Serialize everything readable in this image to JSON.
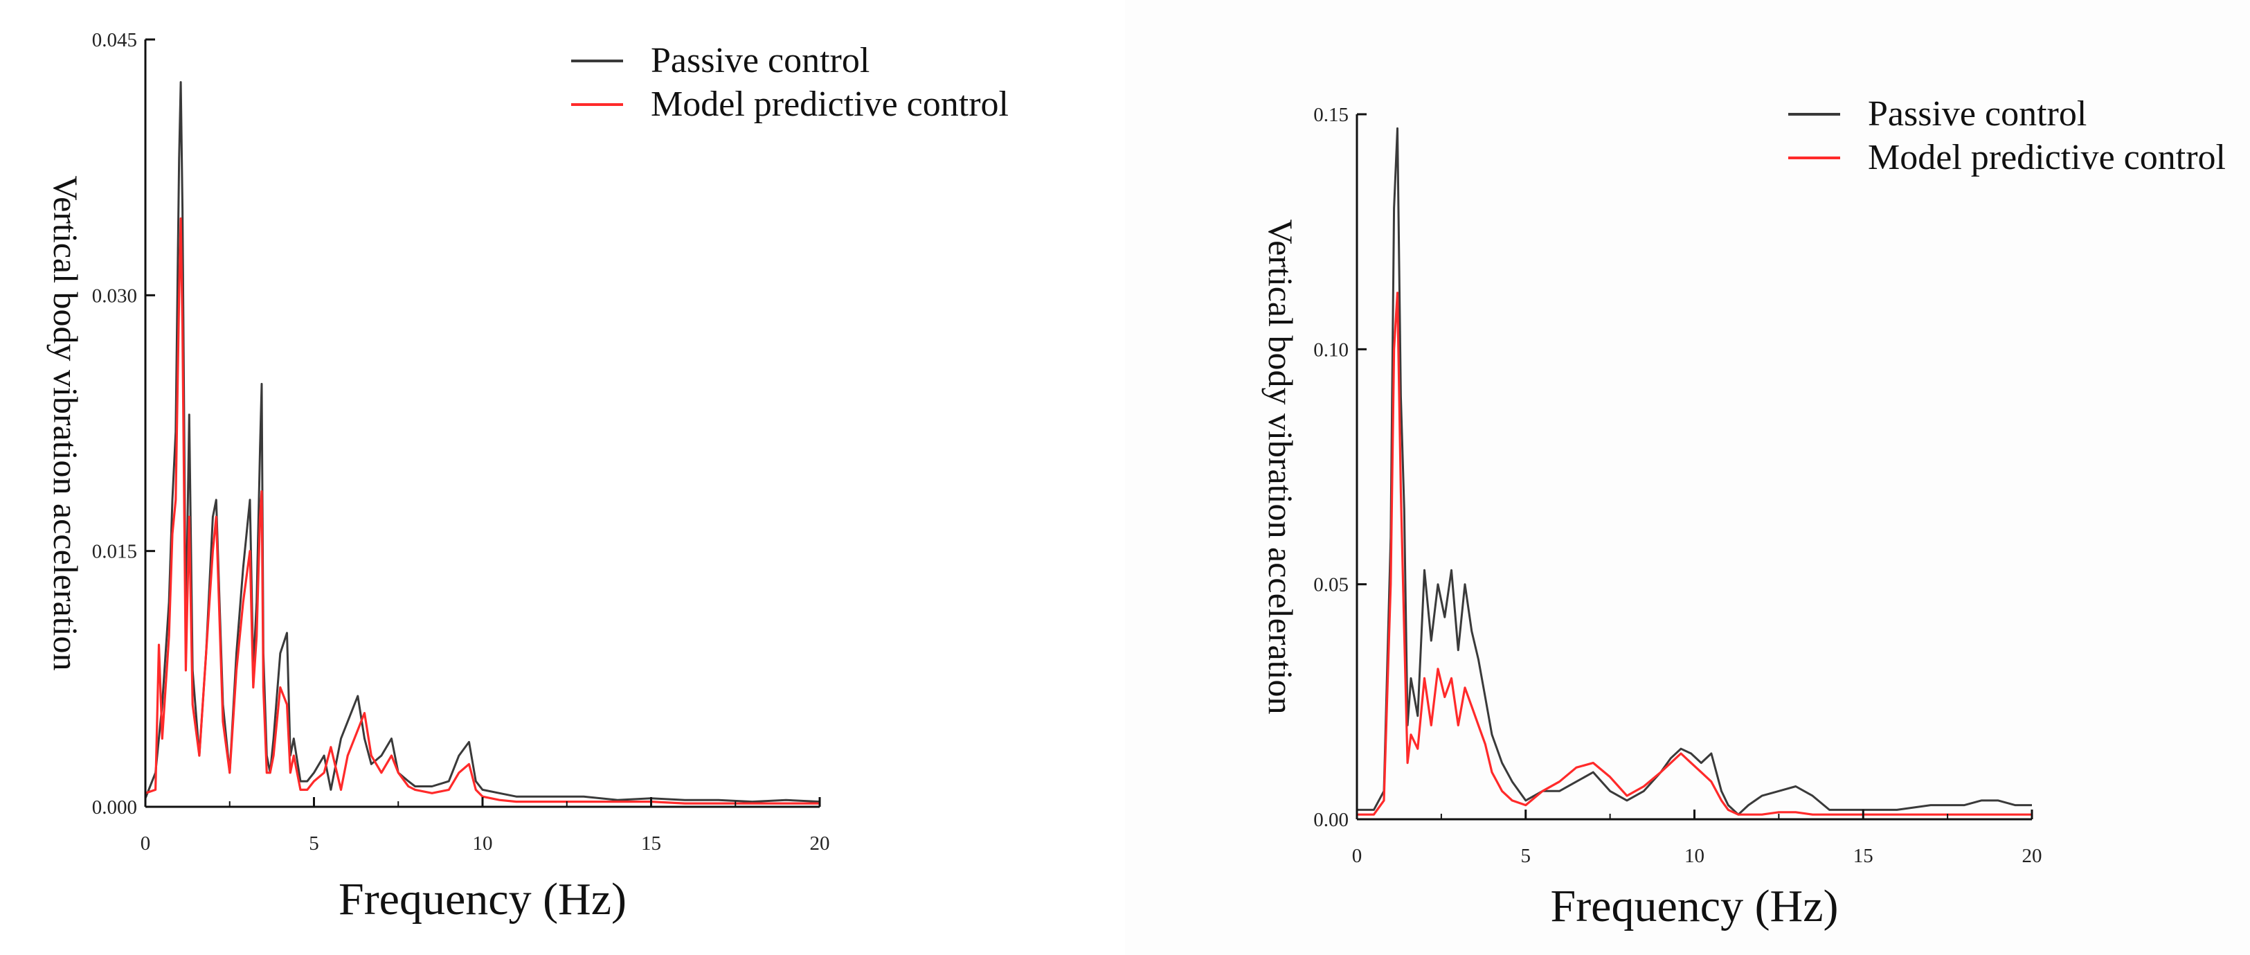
{
  "colors": {
    "passive": "#3a3a3a",
    "mpc": "#ff2a2a",
    "axis": "#111111"
  },
  "chart_data": [
    {
      "type": "line",
      "xlabel": "Frequency (Hz)",
      "ylabel": "Vertical body vibration acceleration",
      "xlim": [
        0,
        20
      ],
      "ylim": [
        0,
        0.045
      ],
      "xticks": [
        0,
        5,
        10,
        15,
        20
      ],
      "xtick_labels": [
        "0",
        "5",
        "10",
        "15",
        "20"
      ],
      "yticks": [
        0,
        0.015,
        0.03,
        0.045
      ],
      "ytick_labels": [
        "0.000",
        "0.015",
        "0.030",
        "0.045"
      ],
      "grid": false,
      "legend_position": "top",
      "series": [
        {
          "name": "Passive control",
          "color": "#3a3a3a",
          "x": [
            0,
            0.3,
            0.5,
            0.7,
            0.8,
            0.9,
            1.0,
            1.05,
            1.1,
            1.2,
            1.3,
            1.4,
            1.6,
            1.8,
            2.0,
            2.1,
            2.2,
            2.3,
            2.5,
            2.7,
            2.9,
            3.1,
            3.2,
            3.3,
            3.4,
            3.45,
            3.5,
            3.6,
            3.7,
            3.8,
            4.0,
            4.2,
            4.3,
            4.4,
            4.6,
            4.8,
            5.0,
            5.3,
            5.5,
            5.8,
            6.0,
            6.3,
            6.5,
            6.7,
            7.0,
            7.3,
            7.5,
            7.8,
            8.0,
            8.5,
            9.0,
            9.3,
            9.6,
            9.8,
            10.0,
            10.5,
            11.0,
            12.0,
            13.0,
            14.0,
            15.0,
            16.0,
            17.0,
            18.0,
            19.0,
            20.0
          ],
          "y": [
            0.0005,
            0.002,
            0.006,
            0.012,
            0.018,
            0.022,
            0.038,
            0.0425,
            0.035,
            0.01,
            0.023,
            0.008,
            0.003,
            0.009,
            0.017,
            0.018,
            0.012,
            0.006,
            0.002,
            0.009,
            0.014,
            0.018,
            0.008,
            0.012,
            0.021,
            0.0248,
            0.009,
            0.003,
            0.002,
            0.004,
            0.009,
            0.0102,
            0.003,
            0.004,
            0.0015,
            0.0015,
            0.002,
            0.003,
            0.001,
            0.004,
            0.005,
            0.0065,
            0.004,
            0.0025,
            0.003,
            0.004,
            0.002,
            0.0015,
            0.0012,
            0.0012,
            0.0015,
            0.003,
            0.0038,
            0.0015,
            0.001,
            0.0008,
            0.0006,
            0.0006,
            0.0006,
            0.0004,
            0.0005,
            0.0004,
            0.0004,
            0.0003,
            0.0004,
            0.0003
          ]
        },
        {
          "name": "Model predictive control",
          "color": "#ff2a2a",
          "x": [
            0,
            0.3,
            0.4,
            0.5,
            0.7,
            0.8,
            0.9,
            1.0,
            1.05,
            1.1,
            1.2,
            1.3,
            1.4,
            1.6,
            1.8,
            2.0,
            2.1,
            2.2,
            2.3,
            2.5,
            2.7,
            2.9,
            3.1,
            3.2,
            3.3,
            3.4,
            3.45,
            3.5,
            3.6,
            3.7,
            3.8,
            4.0,
            4.2,
            4.3,
            4.4,
            4.6,
            4.8,
            5.0,
            5.3,
            5.5,
            5.8,
            6.0,
            6.3,
            6.5,
            6.7,
            7.0,
            7.3,
            7.5,
            7.8,
            8.0,
            8.5,
            9.0,
            9.3,
            9.6,
            9.8,
            10.0,
            10.5,
            11.0,
            12.0,
            13.0,
            14.0,
            15.0,
            16.0,
            17.0,
            18.0,
            19.0,
            20.0
          ],
          "y": [
            0.0008,
            0.001,
            0.0095,
            0.004,
            0.01,
            0.016,
            0.018,
            0.03,
            0.0345,
            0.028,
            0.008,
            0.017,
            0.006,
            0.003,
            0.009,
            0.015,
            0.017,
            0.011,
            0.005,
            0.002,
            0.008,
            0.012,
            0.015,
            0.007,
            0.01,
            0.017,
            0.0185,
            0.007,
            0.002,
            0.002,
            0.003,
            0.007,
            0.006,
            0.002,
            0.003,
            0.001,
            0.001,
            0.0015,
            0.002,
            0.0035,
            0.001,
            0.003,
            0.0045,
            0.0055,
            0.003,
            0.002,
            0.003,
            0.002,
            0.0012,
            0.001,
            0.0008,
            0.001,
            0.002,
            0.0025,
            0.001,
            0.0006,
            0.0004,
            0.0003,
            0.0003,
            0.0003,
            0.0003,
            0.0003,
            0.0002,
            0.0002,
            0.0002,
            0.0002,
            0.0002
          ]
        }
      ]
    },
    {
      "type": "line",
      "xlabel": "Frequency (Hz)",
      "ylabel": "Vertical body vibration acceleration",
      "xlim": [
        0,
        20
      ],
      "ylim": [
        0,
        0.15
      ],
      "xticks": [
        0,
        5,
        10,
        15,
        20
      ],
      "xtick_labels": [
        "0",
        "5",
        "10",
        "15",
        "20"
      ],
      "yticks": [
        0,
        0.05,
        0.1,
        0.15
      ],
      "ytick_labels": [
        "0.00",
        "0.05",
        "0.10",
        "0.15"
      ],
      "grid": false,
      "legend_position": "top-right",
      "series": [
        {
          "name": "Passive control",
          "color": "#3a3a3a",
          "x": [
            0,
            0.5,
            0.8,
            1.0,
            1.1,
            1.2,
            1.3,
            1.4,
            1.5,
            1.6,
            1.8,
            2.0,
            2.2,
            2.4,
            2.6,
            2.8,
            3.0,
            3.2,
            3.4,
            3.6,
            3.8,
            4.0,
            4.3,
            4.6,
            5.0,
            5.5,
            6.0,
            6.5,
            7.0,
            7.5,
            8.0,
            8.5,
            9.0,
            9.3,
            9.6,
            9.9,
            10.2,
            10.5,
            10.8,
            11.0,
            11.3,
            11.6,
            12.0,
            12.5,
            13.0,
            13.5,
            14.0,
            15.0,
            16.0,
            17.0,
            18.0,
            18.5,
            19.0,
            19.5,
            20.0
          ],
          "y": [
            0.002,
            0.002,
            0.006,
            0.06,
            0.13,
            0.147,
            0.09,
            0.066,
            0.02,
            0.03,
            0.022,
            0.053,
            0.038,
            0.05,
            0.043,
            0.053,
            0.036,
            0.05,
            0.04,
            0.034,
            0.026,
            0.018,
            0.012,
            0.008,
            0.004,
            0.006,
            0.006,
            0.008,
            0.01,
            0.006,
            0.004,
            0.006,
            0.01,
            0.013,
            0.015,
            0.014,
            0.012,
            0.014,
            0.006,
            0.003,
            0.001,
            0.003,
            0.005,
            0.006,
            0.007,
            0.005,
            0.002,
            0.002,
            0.002,
            0.003,
            0.003,
            0.004,
            0.004,
            0.003,
            0.003
          ]
        },
        {
          "name": "Model predictive control",
          "color": "#ff2a2a",
          "x": [
            0,
            0.5,
            0.8,
            1.0,
            1.1,
            1.2,
            1.3,
            1.4,
            1.5,
            1.6,
            1.8,
            2.0,
            2.2,
            2.4,
            2.6,
            2.8,
            3.0,
            3.2,
            3.4,
            3.6,
            3.8,
            4.0,
            4.3,
            4.6,
            5.0,
            5.5,
            6.0,
            6.5,
            7.0,
            7.5,
            8.0,
            8.5,
            9.0,
            9.3,
            9.6,
            9.9,
            10.2,
            10.5,
            10.8,
            11.0,
            11.3,
            11.6,
            12.0,
            12.5,
            13.0,
            13.5,
            14.0,
            15.0,
            16.0,
            17.0,
            18.0,
            18.5,
            19.0,
            19.5,
            20.0
          ],
          "y": [
            0.001,
            0.001,
            0.004,
            0.05,
            0.1,
            0.112,
            0.07,
            0.04,
            0.012,
            0.018,
            0.015,
            0.03,
            0.02,
            0.032,
            0.026,
            0.03,
            0.02,
            0.028,
            0.024,
            0.02,
            0.016,
            0.01,
            0.006,
            0.004,
            0.003,
            0.006,
            0.008,
            0.011,
            0.012,
            0.009,
            0.005,
            0.007,
            0.01,
            0.012,
            0.014,
            0.012,
            0.01,
            0.008,
            0.004,
            0.002,
            0.001,
            0.001,
            0.001,
            0.0015,
            0.0015,
            0.001,
            0.001,
            0.001,
            0.001,
            0.001,
            0.001,
            0.001,
            0.001,
            0.001,
            0.001
          ]
        }
      ]
    }
  ]
}
